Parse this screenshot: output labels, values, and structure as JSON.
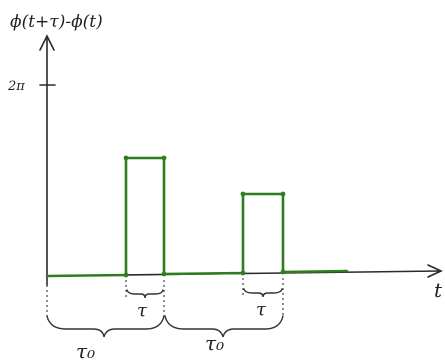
{
  "diagram": {
    "y_axis_label": "ϕ(t+τ)-ϕ(t)",
    "y_tick_label": "2π",
    "x_axis_label": "t",
    "pulse_width_label_1": "τ",
    "pulse_width_label_2": "τ",
    "period_label_1": "τ₀",
    "period_label_2": "τ₀",
    "colors": {
      "signal": "#2e7d1f",
      "axis": "#2a2a2a"
    }
  }
}
